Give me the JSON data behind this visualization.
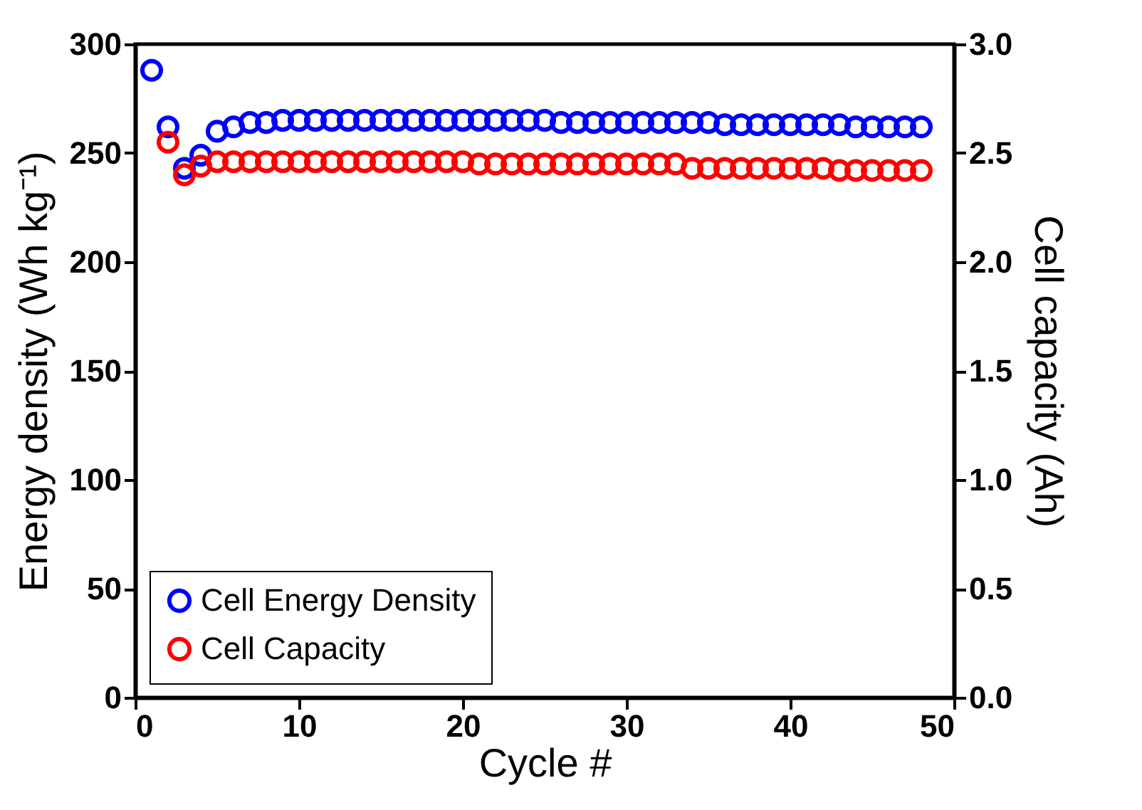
{
  "chart_data": {
    "type": "scatter",
    "xlabel": "Cycle #",
    "ylabel": "Energy density (Wh kg⁻¹)",
    "y2label": "Cell capacity (Ah)",
    "x": [
      1,
      2,
      3,
      4,
      5,
      6,
      7,
      8,
      9,
      10,
      11,
      12,
      13,
      14,
      15,
      16,
      17,
      18,
      19,
      20,
      21,
      22,
      23,
      24,
      25,
      26,
      27,
      28,
      29,
      30,
      31,
      32,
      33,
      34,
      35,
      36,
      37,
      38,
      39,
      40,
      41,
      42,
      43,
      44,
      45,
      46,
      47,
      48
    ],
    "series": [
      {
        "name": "Cell Energy Density",
        "color": "#0000ff",
        "values": [
          288,
          262,
          243,
          249,
          260,
          262,
          264,
          264,
          265,
          265,
          265,
          265,
          265,
          265,
          265,
          265,
          265,
          265,
          265,
          265,
          265,
          265,
          265,
          265,
          265,
          264,
          264,
          264,
          264,
          264,
          264,
          264,
          264,
          264,
          264,
          263,
          263,
          263,
          263,
          263,
          263,
          263,
          263,
          262,
          262,
          262,
          262,
          262
        ]
      },
      {
        "name": "Cell Capacity",
        "color": "#ff0000",
        "axis": "y2",
        "values": [
          null,
          2.55,
          2.4,
          2.44,
          2.46,
          2.46,
          2.46,
          2.46,
          2.46,
          2.46,
          2.46,
          2.46,
          2.46,
          2.46,
          2.46,
          2.46,
          2.46,
          2.46,
          2.46,
          2.46,
          2.45,
          2.45,
          2.45,
          2.45,
          2.45,
          2.45,
          2.45,
          2.45,
          2.45,
          2.45,
          2.45,
          2.45,
          2.45,
          2.43,
          2.43,
          2.43,
          2.43,
          2.43,
          2.43,
          2.43,
          2.43,
          2.43,
          2.42,
          2.42,
          2.42,
          2.42,
          2.42,
          2.42
        ]
      }
    ],
    "xlim": [
      0,
      50
    ],
    "xticks": [
      0,
      10,
      20,
      30,
      40,
      50
    ],
    "ylim": [
      0,
      300
    ],
    "yticks": [
      0,
      50,
      100,
      150,
      200,
      250,
      300
    ],
    "y2lim": [
      0,
      3
    ],
    "y2ticks": [
      {
        "value": 0,
        "label": "0.0"
      },
      {
        "value": 0.5,
        "label": "0.5"
      },
      {
        "value": 1,
        "label": "1.0"
      },
      {
        "value": 1.5,
        "label": "1.5"
      },
      {
        "value": 2,
        "label": "2.0"
      },
      {
        "value": 2.5,
        "label": "2.5"
      },
      {
        "value": 3,
        "label": "3.0"
      }
    ],
    "legend": "bottom left",
    "marker": "circle"
  }
}
